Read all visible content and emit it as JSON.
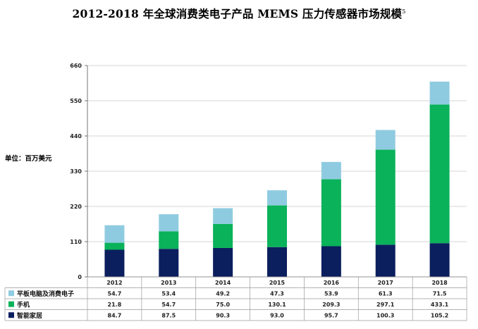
{
  "page": {
    "title": "2012-2018 年全球消费类电子产品 MEMS 压力传感器市场规模",
    "title_sup": "5",
    "unit_label": "单位：百万美元"
  },
  "colors": {
    "smart_home": "#0b1f5e",
    "mobile": "#0ab25a",
    "tablet": "#8fcbe0",
    "axis": "#555555",
    "grid": "#c8c8c8"
  },
  "chart_data": {
    "type": "bar",
    "stacked": true,
    "title": "2012-2018 年全球消费类电子产品 MEMS 压力传感器市场规模",
    "ylabel": "单位：百万美元",
    "xlabel": "",
    "ylim": [
      0,
      660
    ],
    "yticks": [
      0,
      110,
      220,
      330,
      440,
      550,
      660
    ],
    "grid": true,
    "categories": [
      "2012",
      "2013",
      "2014",
      "2015",
      "2016",
      "2017",
      "2018"
    ],
    "series": [
      {
        "name": "智能家居",
        "color": "#0b1f5e",
        "values": [
          84.7,
          87.5,
          90.3,
          93.0,
          95.7,
          100.3,
          105.2
        ]
      },
      {
        "name": "手机",
        "color": "#0ab25a",
        "values": [
          21.8,
          54.7,
          75.0,
          130.1,
          209.3,
          297.1,
          433.1
        ]
      },
      {
        "name": "平板电脑及消费电子",
        "color": "#8fcbe0",
        "values": [
          54.7,
          53.4,
          49.2,
          47.3,
          53.9,
          61.3,
          71.5
        ]
      }
    ],
    "table_order": [
      2,
      1,
      0
    ],
    "table_values": [
      [
        "54.7",
        "53.4",
        "49.2",
        "47.3",
        "53.9",
        "61.3",
        "71.5"
      ],
      [
        "21.8",
        "54.7",
        "75.0",
        "130.1",
        "209.3",
        "297.1",
        "433.1"
      ],
      [
        "84.7",
        "87.5",
        "90.3",
        "93.0",
        "95.7",
        "100.3",
        "105.2"
      ]
    ]
  }
}
